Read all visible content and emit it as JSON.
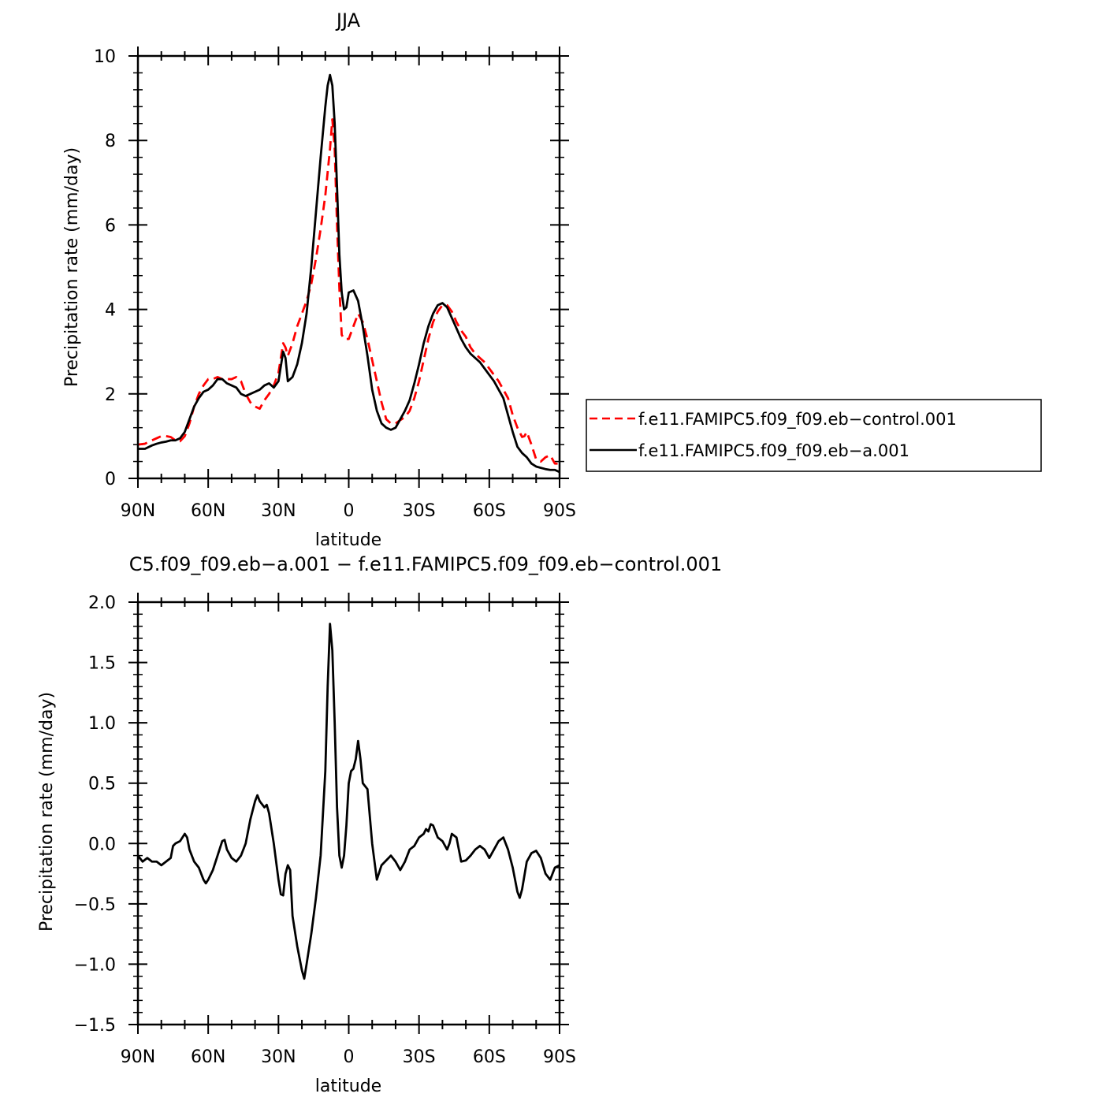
{
  "chart_data": [
    {
      "type": "line",
      "title": "JJA",
      "xlabel": "latitude",
      "ylabel": "Precipitation rate (mm/day)",
      "xlim": [
        90,
        -90
      ],
      "ylim": [
        0,
        10
      ],
      "xticks": [
        {
          "value": 90,
          "label": "90N"
        },
        {
          "value": 60,
          "label": "60N"
        },
        {
          "value": 30,
          "label": "30N"
        },
        {
          "value": 0,
          "label": "0"
        },
        {
          "value": -30,
          "label": "30S"
        },
        {
          "value": -60,
          "label": "60S"
        },
        {
          "value": -90,
          "label": "90S"
        }
      ],
      "yticks": [
        {
          "value": 0,
          "label": "0"
        },
        {
          "value": 2,
          "label": "2"
        },
        {
          "value": 4,
          "label": "4"
        },
        {
          "value": 6,
          "label": "6"
        },
        {
          "value": 8,
          "label": "8"
        },
        {
          "value": 10,
          "label": "10"
        }
      ],
      "legend_position": "right",
      "series": [
        {
          "name": "f.e11.FAMIPC5.f09_f09.eb−control.001",
          "color": "#ff0000",
          "dash": "dashed",
          "x": [
            90,
            87,
            84,
            82,
            80,
            78,
            76,
            74,
            72,
            70,
            68,
            66,
            64,
            62,
            60,
            58,
            56,
            54,
            52,
            50,
            48,
            46,
            44,
            42,
            40,
            38,
            36,
            34,
            32,
            30,
            28,
            27,
            26,
            24,
            22,
            20,
            18,
            16,
            14,
            12,
            10,
            8,
            7,
            6,
            5,
            4,
            3,
            2,
            1,
            0,
            -2,
            -4,
            -6,
            -8,
            -10,
            -12,
            -14,
            -16,
            -18,
            -20,
            -22,
            -24,
            -26,
            -28,
            -30,
            -32,
            -34,
            -36,
            -38,
            -40,
            -42,
            -44,
            -46,
            -48,
            -50,
            -52,
            -54,
            -56,
            -58,
            -60,
            -62,
            -64,
            -66,
            -68,
            -70,
            -72,
            -74,
            -75,
            -76,
            -78,
            -80,
            -82,
            -84,
            -86,
            -88,
            -90
          ],
          "y": [
            0.8,
            0.82,
            0.9,
            0.95,
            1.0,
            1.0,
            0.98,
            0.9,
            0.88,
            1.0,
            1.3,
            1.7,
            2.0,
            2.2,
            2.35,
            2.35,
            2.4,
            2.35,
            2.35,
            2.35,
            2.4,
            2.3,
            2.0,
            1.8,
            1.7,
            1.65,
            1.85,
            2.0,
            2.2,
            2.5,
            3.2,
            3.1,
            2.9,
            3.2,
            3.6,
            3.9,
            4.2,
            4.6,
            5.2,
            5.9,
            6.7,
            7.8,
            8.5,
            7.8,
            6.0,
            4.5,
            3.4,
            3.3,
            3.3,
            3.3,
            3.6,
            3.9,
            3.7,
            3.3,
            2.8,
            2.3,
            1.8,
            1.4,
            1.3,
            1.3,
            1.38,
            1.45,
            1.6,
            1.9,
            2.3,
            2.8,
            3.3,
            3.7,
            3.95,
            4.1,
            4.1,
            3.95,
            3.7,
            3.5,
            3.35,
            3.1,
            2.95,
            2.85,
            2.75,
            2.6,
            2.45,
            2.3,
            2.1,
            1.9,
            1.5,
            1.2,
            0.98,
            1.0,
            1.1,
            0.8,
            0.45,
            0.4,
            0.5,
            0.55,
            0.35,
            0.35
          ]
        },
        {
          "name": "f.e11.FAMIPC5.f09_f09.eb−a.001",
          "color": "#000000",
          "dash": "solid",
          "x": [
            90,
            87,
            84,
            82,
            80,
            78,
            76,
            74,
            72,
            70,
            68,
            66,
            64,
            62,
            60,
            58,
            56,
            54,
            52,
            50,
            48,
            46,
            44,
            42,
            40,
            38,
            36,
            34,
            32,
            30,
            28,
            27,
            26,
            24,
            22,
            20,
            18,
            16,
            14,
            12,
            10,
            9,
            8,
            7,
            6,
            5,
            4,
            3,
            2,
            1,
            0,
            -2,
            -4,
            -6,
            -8,
            -10,
            -12,
            -14,
            -16,
            -18,
            -20,
            -22,
            -24,
            -26,
            -28,
            -30,
            -32,
            -34,
            -36,
            -38,
            -40,
            -42,
            -44,
            -46,
            -48,
            -50,
            -52,
            -54,
            -56,
            -58,
            -60,
            -62,
            -64,
            -66,
            -68,
            -70,
            -72,
            -74,
            -76,
            -78,
            -80,
            -82,
            -84,
            -86,
            -88,
            -90
          ],
          "y": [
            0.7,
            0.7,
            0.78,
            0.82,
            0.85,
            0.87,
            0.9,
            0.9,
            0.95,
            1.1,
            1.4,
            1.7,
            1.9,
            2.05,
            2.1,
            2.2,
            2.35,
            2.35,
            2.25,
            2.2,
            2.15,
            2.0,
            1.95,
            2.0,
            2.05,
            2.1,
            2.2,
            2.25,
            2.15,
            2.3,
            3.0,
            2.85,
            2.3,
            2.4,
            2.7,
            3.2,
            3.9,
            5.0,
            6.3,
            7.6,
            8.8,
            9.3,
            9.55,
            9.3,
            8.4,
            6.9,
            5.3,
            4.4,
            4.0,
            4.05,
            4.4,
            4.45,
            4.2,
            3.6,
            2.9,
            2.1,
            1.6,
            1.3,
            1.2,
            1.15,
            1.2,
            1.4,
            1.6,
            1.85,
            2.25,
            2.7,
            3.2,
            3.6,
            3.9,
            4.1,
            4.15,
            4.05,
            3.8,
            3.55,
            3.3,
            3.1,
            2.95,
            2.85,
            2.75,
            2.6,
            2.45,
            2.3,
            2.1,
            1.9,
            1.5,
            1.1,
            0.75,
            0.6,
            0.5,
            0.35,
            0.28,
            0.25,
            0.22,
            0.2,
            0.2,
            0.15
          ]
        }
      ]
    },
    {
      "type": "line",
      "title": "C5.f09_f09.eb−a.001 − f.e11.FAMIPC5.f09_f09.eb−control.001",
      "xlabel": "latitude",
      "ylabel": "Precipitation rate (mm/day)",
      "xlim": [
        90,
        -90
      ],
      "ylim": [
        -1.5,
        2.0
      ],
      "xticks": [
        {
          "value": 90,
          "label": "90N"
        },
        {
          "value": 60,
          "label": "60N"
        },
        {
          "value": 30,
          "label": "30N"
        },
        {
          "value": 0,
          "label": "0"
        },
        {
          "value": -30,
          "label": "30S"
        },
        {
          "value": -60,
          "label": "60S"
        },
        {
          "value": -90,
          "label": "90S"
        }
      ],
      "yticks": [
        {
          "value": -1.5,
          "label": "−1.5"
        },
        {
          "value": -1.0,
          "label": "−1.0"
        },
        {
          "value": -0.5,
          "label": "−0.5"
        },
        {
          "value": 0.0,
          "label": "0.0"
        },
        {
          "value": 0.5,
          "label": "0.5"
        },
        {
          "value": 1.0,
          "label": "1.0"
        },
        {
          "value": 1.5,
          "label": "1.5"
        },
        {
          "value": 2.0,
          "label": "2.0"
        }
      ],
      "series": [
        {
          "color": "#000000",
          "dash": "solid",
          "x": [
            90,
            88,
            86,
            84,
            82,
            80,
            78,
            76,
            75,
            74,
            72,
            70,
            69,
            68,
            66,
            64,
            62,
            61,
            60,
            58,
            56,
            54,
            53,
            52,
            50,
            48,
            46,
            44,
            42,
            40,
            39,
            38,
            36,
            35,
            34,
            32,
            30,
            29,
            28,
            27,
            26,
            25,
            24,
            22,
            20,
            19,
            18,
            16,
            14,
            12,
            10,
            9,
            8,
            7,
            6,
            5,
            4,
            3,
            2,
            1,
            0,
            -1,
            -2,
            -3,
            -4,
            -5,
            -6,
            -8,
            -10,
            -12,
            -14,
            -16,
            -18,
            -20,
            -22,
            -24,
            -26,
            -28,
            -30,
            -32,
            -33,
            -34,
            -35,
            -36,
            -38,
            -40,
            -42,
            -43,
            -44,
            -46,
            -48,
            -50,
            -52,
            -54,
            -56,
            -58,
            -60,
            -62,
            -64,
            -66,
            -68,
            -70,
            -72,
            -73,
            -74,
            -76,
            -78,
            -80,
            -82,
            -84,
            -86,
            -88,
            -90
          ],
          "y": [
            -0.1,
            -0.15,
            -0.12,
            -0.15,
            -0.15,
            -0.18,
            -0.15,
            -0.12,
            -0.02,
            0.0,
            0.02,
            0.08,
            0.05,
            -0.05,
            -0.15,
            -0.2,
            -0.3,
            -0.33,
            -0.3,
            -0.22,
            -0.1,
            0.02,
            0.03,
            -0.05,
            -0.12,
            -0.15,
            -0.1,
            0.0,
            0.2,
            0.35,
            0.4,
            0.35,
            0.3,
            0.32,
            0.25,
            0.0,
            -0.3,
            -0.42,
            -0.43,
            -0.25,
            -0.18,
            -0.22,
            -0.6,
            -0.85,
            -1.05,
            -1.12,
            -1.0,
            -0.75,
            -0.45,
            -0.1,
            0.6,
            1.3,
            1.82,
            1.6,
            1.0,
            0.3,
            -0.1,
            -0.2,
            -0.1,
            0.15,
            0.5,
            0.6,
            0.62,
            0.7,
            0.85,
            0.7,
            0.5,
            0.45,
            0.0,
            -0.3,
            -0.18,
            -0.14,
            -0.1,
            -0.15,
            -0.22,
            -0.15,
            -0.05,
            -0.02,
            0.05,
            0.08,
            0.12,
            0.1,
            0.16,
            0.15,
            0.05,
            0.02,
            -0.05,
            0.0,
            0.08,
            0.05,
            -0.15,
            -0.14,
            -0.1,
            -0.05,
            -0.02,
            -0.05,
            -0.12,
            -0.05,
            0.02,
            0.05,
            -0.05,
            -0.2,
            -0.4,
            -0.45,
            -0.38,
            -0.15,
            -0.08,
            -0.06,
            -0.12,
            -0.25,
            -0.3,
            -0.2,
            -0.18
          ]
        }
      ]
    }
  ]
}
